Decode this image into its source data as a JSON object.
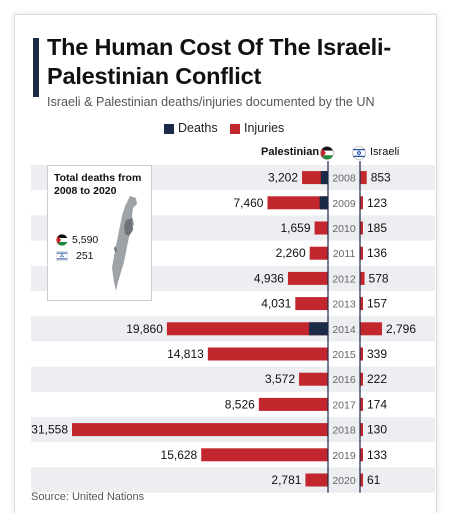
{
  "title": "The Human Cost Of The Israeli-Palestinian Conflict",
  "subtitle": "Israeli & Palestinian deaths/injuries documented by the UN",
  "legend": {
    "deaths": "Deaths",
    "injuries": "Injuries"
  },
  "columns": {
    "left": "Palestinian",
    "right": "Israeli"
  },
  "colors": {
    "deaths": "#1b2a47",
    "injuries": "#c1272d",
    "accent": "#1b2a47"
  },
  "inset": {
    "title": "Total deaths from 2008 to 2020",
    "palestinian": "5,590",
    "israeli": "251"
  },
  "source": "Source: United Nations",
  "chart_data": {
    "type": "bar",
    "orientation": "horizontal-butterfly",
    "categories": [
      "2008",
      "2009",
      "2010",
      "2011",
      "2012",
      "2013",
      "2014",
      "2015",
      "2016",
      "2017",
      "2018",
      "2019",
      "2020"
    ],
    "series": [
      {
        "name": "Palestinian",
        "values": [
          3202,
          7460,
          1659,
          2260,
          4936,
          4031,
          19860,
          14813,
          3572,
          8526,
          31558,
          15628,
          2781
        ],
        "labels": [
          "3,202",
          "7,460",
          "1,659",
          "2,260",
          "4,936",
          "4,031",
          "19,860",
          "14,813",
          "3,572",
          "8,526",
          "31,558",
          "15,628",
          "2,781"
        ],
        "deaths_values": [
          887,
          1034,
          0,
          0,
          0,
          0,
          2329,
          0,
          0,
          0,
          0,
          0,
          0
        ]
      },
      {
        "name": "Israeli",
        "values": [
          853,
          123,
          185,
          136,
          578,
          157,
          2796,
          339,
          222,
          174,
          130,
          133,
          61
        ],
        "labels": [
          "853",
          "123",
          "185",
          "136",
          "578",
          "157",
          "2,796",
          "339",
          "222",
          "174",
          "130",
          "133",
          "61"
        ]
      }
    ]
  }
}
